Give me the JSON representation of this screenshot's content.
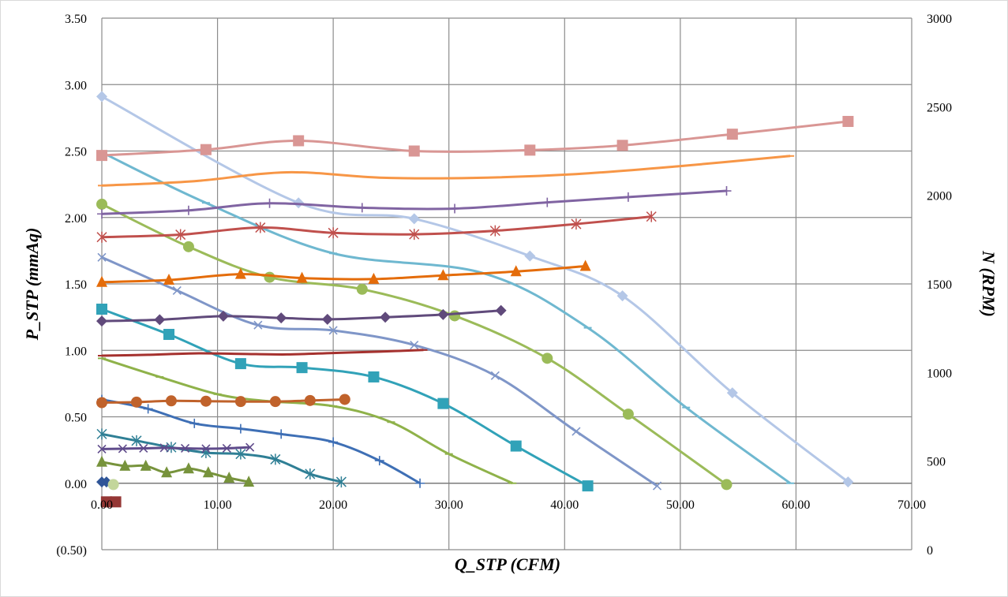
{
  "chart_data": {
    "type": "line",
    "xlabel": "Q_STP (CFM)",
    "ylabel": "P_STP (mmAq)",
    "y2label": "N (RPM)",
    "xlim": [
      0,
      70
    ],
    "ylim": [
      -0.5,
      3.5
    ],
    "y2lim": [
      0,
      3000
    ],
    "grid": true,
    "legend": "none",
    "x_ticks": [
      "0.00",
      "10.00",
      "20.00",
      "30.00",
      "40.00",
      "50.00",
      "60.00",
      "70.00"
    ],
    "y_ticks": [
      "(0.50)",
      "0.00",
      "0.50",
      "1.00",
      "1.50",
      "2.00",
      "2.50",
      "3.00",
      "3.50"
    ],
    "y2_ticks": [
      "0",
      "500",
      "1000",
      "1500",
      "2000",
      "2500",
      "3000"
    ],
    "series": [
      {
        "color": "#b4c7e7",
        "marker": "diamond",
        "axis": "left",
        "x": [
          0,
          17,
          27,
          37,
          45,
          54.5,
          64.5
        ],
        "y": [
          2.91,
          2.11,
          1.99,
          1.71,
          1.41,
          0.68,
          0.01
        ]
      },
      {
        "color": "#6fb8d0",
        "marker": "dash",
        "axis": "left",
        "x": [
          0,
          9,
          20,
          33,
          42,
          50.5,
          59.5
        ],
        "y": [
          2.49,
          2.11,
          1.73,
          1.58,
          1.17,
          0.57,
          0
        ]
      },
      {
        "color": "#9bbb59",
        "marker": "circle",
        "axis": "left",
        "x": [
          0,
          7.5,
          14.5,
          22.5,
          30.5,
          38.5,
          45.5,
          54
        ],
        "y": [
          2.1,
          1.78,
          1.55,
          1.46,
          1.26,
          0.94,
          0.52,
          -0.01
        ]
      },
      {
        "color": "#7f96c8",
        "marker": "x",
        "axis": "left",
        "x": [
          0,
          6.5,
          13.5,
          20,
          27,
          34,
          41,
          48
        ],
        "y": [
          1.7,
          1.45,
          1.19,
          1.15,
          1.04,
          0.81,
          0.39,
          -0.02
        ]
      },
      {
        "color": "#31a2b8",
        "marker": "square",
        "axis": "left",
        "x": [
          0,
          5.8,
          12,
          17.3,
          23.5,
          29.5,
          35.8,
          42
        ],
        "y": [
          1.31,
          1.12,
          0.9,
          0.87,
          0.8,
          0.6,
          0.28,
          -0.02
        ]
      },
      {
        "color": "#8fb24a",
        "marker": "dash",
        "axis": "left",
        "x": [
          0,
          5,
          10,
          14,
          20,
          25,
          30,
          35.5
        ],
        "y": [
          0.94,
          0.8,
          0.67,
          0.62,
          0.58,
          0.46,
          0.22,
          0
        ]
      },
      {
        "color": "#3e6fb5",
        "marker": "plus",
        "axis": "left",
        "x": [
          0,
          4,
          8,
          12,
          15.5,
          20,
          24,
          27.5
        ],
        "y": [
          0.63,
          0.56,
          0.45,
          0.41,
          0.37,
          0.31,
          0.17,
          0
        ]
      },
      {
        "color": "#2f7f95",
        "marker": "asterisk",
        "axis": "left",
        "x": [
          0,
          3,
          6,
          9,
          12,
          15,
          18,
          20.7
        ],
        "y": [
          0.37,
          0.32,
          0.27,
          0.23,
          0.22,
          0.18,
          0.07,
          0.01
        ]
      },
      {
        "color": "#77933c",
        "marker": "triangle",
        "axis": "left",
        "x": [
          0,
          2,
          3.8,
          5.6,
          7.5,
          9.2,
          11,
          12.7
        ],
        "y": [
          0.16,
          0.13,
          0.13,
          0.08,
          0.11,
          0.08,
          0.04,
          0.01
        ]
      },
      {
        "color": "#2f5597",
        "marker": "diamond",
        "axis": "left",
        "x": [
          0,
          0.4
        ],
        "y": [
          0.01,
          0.01
        ]
      },
      {
        "color": "#c3d69b",
        "marker": "circle",
        "axis": "left",
        "x": [
          1
        ],
        "y": [
          -0.01
        ]
      },
      {
        "color": "#953735",
        "marker": "square",
        "axis": "left",
        "x": [
          0.4,
          1.2
        ],
        "y": [
          -0.14,
          -0.14
        ]
      },
      {
        "color": "#d99694",
        "marker": "square",
        "axis": "right",
        "x": [
          0,
          9,
          17,
          27,
          37,
          45,
          54.5,
          64.5
        ],
        "y": [
          2225,
          2258,
          2308,
          2250,
          2255,
          2282,
          2345,
          2417
        ]
      },
      {
        "color": "#f79646",
        "marker": "dash",
        "axis": "right",
        "x": [
          0,
          8,
          16,
          24,
          32,
          41,
          50,
          59.5
        ],
        "y": [
          2055,
          2080,
          2130,
          2100,
          2098,
          2120,
          2165,
          2222
        ]
      },
      {
        "color": "#8064a2",
        "marker": "plus",
        "axis": "right",
        "x": [
          0,
          7.5,
          14.5,
          22.5,
          30.5,
          38.5,
          45.5,
          54
        ],
        "y": [
          1895,
          1915,
          1955,
          1930,
          1925,
          1960,
          1990,
          2025
        ]
      },
      {
        "color": "#c0504d",
        "marker": "asterisk",
        "axis": "right",
        "x": [
          0,
          6.8,
          13.7,
          20,
          27,
          34,
          41,
          47.5
        ],
        "y": [
          1764,
          1778,
          1818,
          1788,
          1780,
          1800,
          1838,
          1880
        ]
      },
      {
        "color": "#e46c0a",
        "marker": "triangle",
        "axis": "right",
        "x": [
          0,
          5.8,
          12,
          17.3,
          23.5,
          29.5,
          35.8,
          41.8
        ],
        "y": [
          1510,
          1522,
          1555,
          1533,
          1527,
          1548,
          1570,
          1600
        ]
      },
      {
        "color": "#604a7b",
        "marker": "diamond",
        "axis": "right",
        "x": [
          0,
          5,
          10.5,
          15.5,
          19.5,
          24.5,
          29.5,
          34.5
        ],
        "y": [
          1290,
          1298,
          1318,
          1308,
          1300,
          1312,
          1327,
          1350
        ]
      },
      {
        "color": "#a5312e",
        "marker": "dash",
        "axis": "right",
        "x": [
          0,
          4,
          8,
          12,
          16,
          20,
          24,
          27.8
        ],
        "y": [
          1095,
          1100,
          1108,
          1105,
          1102,
          1110,
          1118,
          1127
        ]
      },
      {
        "color": "#c0622b",
        "marker": "circle",
        "axis": "right",
        "x": [
          0,
          3,
          6,
          9,
          12,
          15,
          18,
          21
        ],
        "y": [
          830,
          833,
          840,
          838,
          836,
          836,
          842,
          848
        ]
      },
      {
        "color": "#5f4b8b",
        "marker": "x",
        "axis": "right",
        "x": [
          0,
          1.8,
          3.6,
          5.4,
          7.2,
          9,
          10.8,
          12.8
        ],
        "y": [
          568,
          570,
          572,
          575,
          572,
          570,
          572,
          578
        ]
      }
    ]
  }
}
